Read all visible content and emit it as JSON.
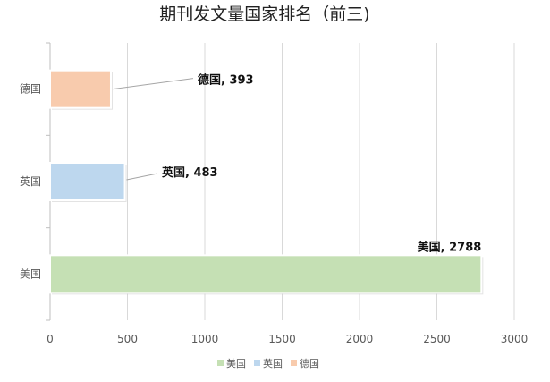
{
  "chart_data": {
    "type": "bar",
    "orientation": "horizontal",
    "title": "期刊发文量国家排名（前三)",
    "categories": [
      "美国",
      "英国",
      "德国"
    ],
    "series": [
      {
        "name": "美国",
        "value": 2788,
        "color": "#c5e0b4",
        "label": "美国, 2788"
      },
      {
        "name": "英国",
        "value": 483,
        "color": "#bdd7ee",
        "label": "英国, 483"
      },
      {
        "name": "德国",
        "value": 393,
        "color": "#f8cbad",
        "label": "德国, 393"
      }
    ],
    "xlim": [
      0,
      3000
    ],
    "xticks": [
      "0",
      "500",
      "1000",
      "1500",
      "2000",
      "2500",
      "3000"
    ],
    "grid": "vertical",
    "legend_position": "bottom"
  }
}
